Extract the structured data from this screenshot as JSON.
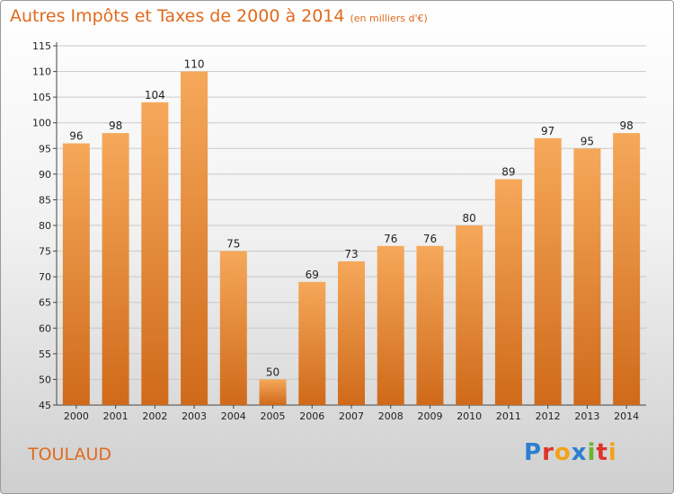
{
  "header": {
    "title": "Autres Impôts et Taxes de 2000 à 2014",
    "subtitle": "(en milliers d'€)"
  },
  "footer": {
    "place": "TOULAUD",
    "logo": "Proxiti",
    "logo_letters": [
      {
        "ch": "P",
        "color": "#2a7fd0"
      },
      {
        "ch": "r",
        "color": "#e0322b"
      },
      {
        "ch": "o",
        "color": "#f2a21b"
      },
      {
        "ch": "x",
        "color": "#2a7fd0"
      },
      {
        "ch": "i",
        "color": "#6ab42d"
      },
      {
        "ch": "t",
        "color": "#e0322b"
      },
      {
        "ch": "i",
        "color": "#f2a21b"
      }
    ]
  },
  "colors": {
    "accent": "#e06a1c",
    "bar_light": "#f6a85a",
    "bar_dark": "#cf6a1a",
    "grid": "#c8c8c8"
  },
  "chart_data": {
    "type": "bar",
    "categories": [
      "2000",
      "2001",
      "2002",
      "2003",
      "2004",
      "2005",
      "2006",
      "2007",
      "2008",
      "2009",
      "2010",
      "2011",
      "2012",
      "2013",
      "2014"
    ],
    "values": [
      96,
      98,
      104,
      110,
      75,
      50,
      69,
      73,
      76,
      76,
      80,
      89,
      97,
      95,
      98
    ],
    "yticks": [
      45,
      50,
      55,
      60,
      65,
      70,
      75,
      80,
      85,
      90,
      95,
      100,
      105,
      110,
      115
    ],
    "ylim": [
      45,
      115
    ],
    "grid": true,
    "data_labels": true
  }
}
